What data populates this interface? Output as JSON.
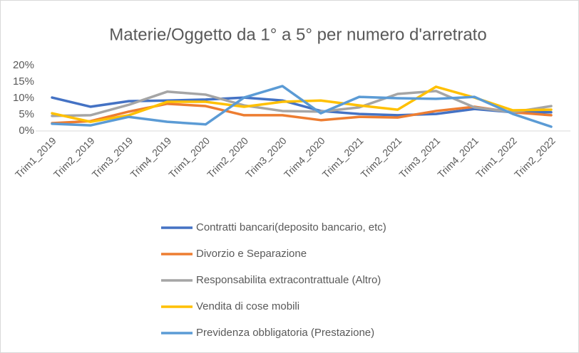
{
  "chart_data": {
    "type": "line",
    "title": "Materie/Oggetto da 1° a 5° per numero d'arretrato",
    "categories": [
      "Trim1_2019",
      "Trim2_2019",
      "Trim3_2019",
      "Trim4_2019",
      "Trim1_2020",
      "Trim2_2020",
      "Trim3_2020",
      "Trim4_2020",
      "Trim1_2021",
      "Trim2_2021",
      "Trim3_2021",
      "Trim4_2021",
      "Trim1_2022",
      "Trim2_2022"
    ],
    "series": [
      {
        "name": "Contratti bancari(deposito bancario, etc)",
        "color": "#4472c4",
        "values": [
          10.2,
          7.4,
          9.1,
          9.3,
          9.6,
          10.2,
          9.3,
          6.1,
          5.2,
          4.8,
          5.2,
          6.7,
          5.7,
          5.7
        ]
      },
      {
        "name": "Divorzio e Separazione",
        "color": "#ed7d31",
        "values": [
          2.4,
          3.0,
          5.9,
          8.3,
          7.6,
          4.8,
          4.8,
          3.3,
          4.3,
          4.1,
          6.1,
          7.4,
          5.7,
          4.8
        ]
      },
      {
        "name": "Responsabilita extracontrattuale (Altro)",
        "color": "#a5a5a5",
        "values": [
          4.6,
          4.8,
          8.0,
          12.0,
          11.1,
          7.8,
          6.1,
          5.9,
          7.2,
          11.3,
          12.2,
          7.2,
          5.7,
          7.6
        ]
      },
      {
        "name": "Vendita di cose mobili",
        "color": "#ffc000",
        "values": [
          5.4,
          2.8,
          4.8,
          8.9,
          8.9,
          7.4,
          8.9,
          9.3,
          7.8,
          6.5,
          13.5,
          10.2,
          6.3,
          6.5
        ]
      },
      {
        "name": "Previdenza obbligatoria (Prestazione)",
        "color": "#5b9bd5",
        "values": [
          2.2,
          1.7,
          4.3,
          2.8,
          2.0,
          10.2,
          13.7,
          5.4,
          10.4,
          10.0,
          9.8,
          10.4,
          5.2,
          1.3
        ]
      }
    ],
    "ylim": [
      0,
      20
    ],
    "yticks": [
      {
        "value": 0,
        "label": "0%"
      },
      {
        "value": 5,
        "label": "5%"
      },
      {
        "value": 10,
        "label": "10%"
      },
      {
        "value": 15,
        "label": "15%"
      },
      {
        "value": 20,
        "label": "20%"
      }
    ],
    "grid": false,
    "legend": "bottom"
  }
}
